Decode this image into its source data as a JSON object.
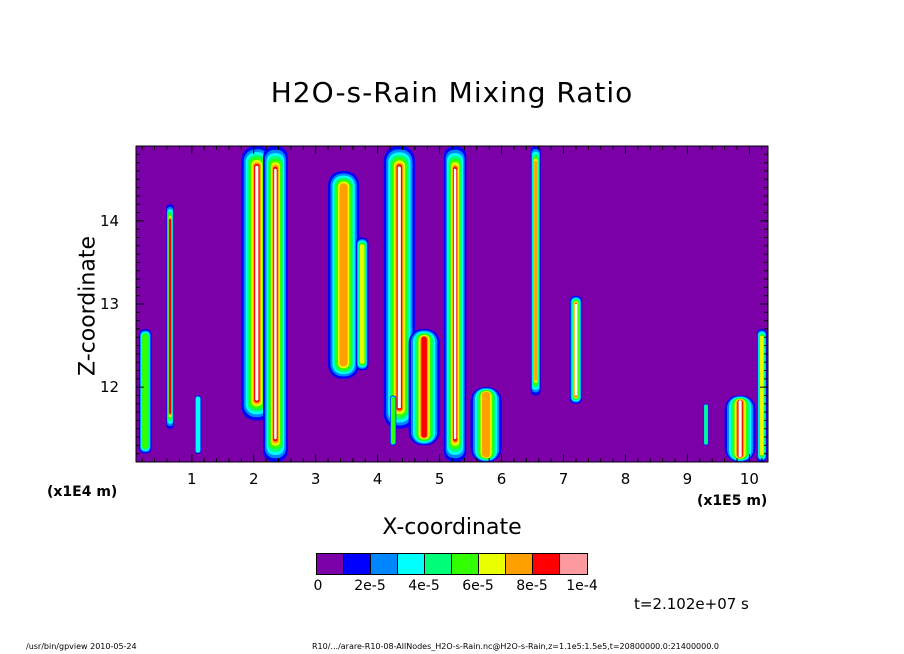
{
  "chart_data": {
    "type": "heatmap",
    "title": "H2O-s-Rain Mixing Ratio",
    "xlabel": "X-coordinate",
    "ylabel": "Z-coordinate",
    "x_unit_left": "(x1E4 m)",
    "x_unit_right": "(x1E5 m)",
    "xlim": [
      0.1,
      10.3
    ],
    "ylim": [
      11.1,
      14.9
    ],
    "x_ticks": [
      "1",
      "2",
      "3",
      "4",
      "5",
      "6",
      "7",
      "8",
      "9",
      "10"
    ],
    "y_ticks": [
      "12",
      "13",
      "14"
    ],
    "background_color": "#7b00a8",
    "colorscale": [
      "#7b00a8",
      "#0000ff",
      "#0087ff",
      "#00ffff",
      "#00ff78",
      "#32ff00",
      "#eaff00",
      "#ffa000",
      "#ff0000",
      "#ff9aa0"
    ],
    "colorbar_labels": [
      "0",
      "2e-5",
      "4e-5",
      "6e-5",
      "8e-5",
      "1e-4"
    ],
    "time_label": "t=2.102e+07 s",
    "features": [
      {
        "x": 0.65,
        "z0": 11.5,
        "z1": 14.2,
        "w": 0.06,
        "peak": 0.9
      },
      {
        "x": 0.25,
        "z0": 11.2,
        "z1": 12.7,
        "w": 0.1,
        "peak": 0.6
      },
      {
        "x": 2.05,
        "z0": 11.6,
        "z1": 14.9,
        "w": 0.25,
        "peak": 1.0
      },
      {
        "x": 2.35,
        "z0": 11.1,
        "z1": 14.9,
        "w": 0.2,
        "peak": 1.0
      },
      {
        "x": 3.45,
        "z0": 12.1,
        "z1": 14.6,
        "w": 0.25,
        "peak": 0.8
      },
      {
        "x": 4.35,
        "z0": 11.5,
        "z1": 14.9,
        "w": 0.25,
        "peak": 1.0
      },
      {
        "x": 4.75,
        "z0": 11.3,
        "z1": 12.7,
        "w": 0.25,
        "peak": 0.9
      },
      {
        "x": 5.25,
        "z0": 11.1,
        "z1": 14.9,
        "w": 0.18,
        "peak": 1.0
      },
      {
        "x": 5.75,
        "z0": 11.1,
        "z1": 12.0,
        "w": 0.25,
        "peak": 0.8
      },
      {
        "x": 6.55,
        "z0": 11.9,
        "z1": 14.9,
        "w": 0.08,
        "peak": 0.8
      },
      {
        "x": 7.2,
        "z0": 11.8,
        "z1": 13.1,
        "w": 0.1,
        "peak": 1.0
      },
      {
        "x": 9.85,
        "z0": 11.1,
        "z1": 11.9,
        "w": 0.25,
        "peak": 1.0
      },
      {
        "x": 10.2,
        "z0": 11.1,
        "z1": 12.7,
        "w": 0.08,
        "peak": 0.7
      },
      {
        "x": 9.3,
        "z0": 11.3,
        "z1": 11.8,
        "w": 0.04,
        "peak": 0.4
      },
      {
        "x": 4.25,
        "z0": 11.3,
        "z1": 11.9,
        "w": 0.05,
        "peak": 0.5
      },
      {
        "x": 3.75,
        "z0": 12.2,
        "z1": 13.8,
        "w": 0.1,
        "peak": 0.7
      },
      {
        "x": 1.1,
        "z0": 11.2,
        "z1": 11.9,
        "w": 0.05,
        "peak": 0.3
      }
    ]
  },
  "footer": {
    "program": "/usr/bin/gpview   2010-05-24",
    "source": "R10/.../arare-R10-08-AllNodes_H2O-s-Rain.nc@H2O-s-Rain,z=1.1e5:1.5e5,t=20800000.0:21400000.0"
  }
}
